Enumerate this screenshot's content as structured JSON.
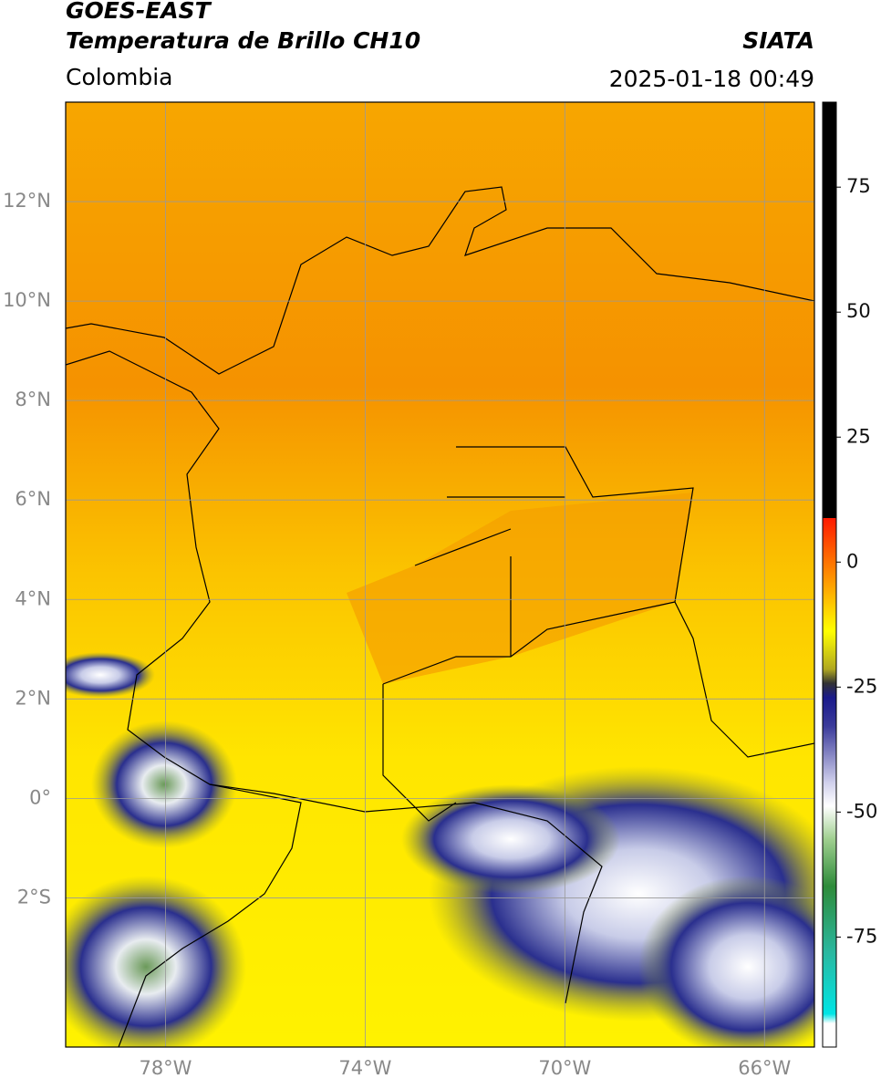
{
  "header": {
    "title": "GOES-EAST",
    "subtitle": "Temperatura de Brillo CH10",
    "source": "SIATA",
    "region": "Colombia",
    "datetime": "2025-01-18 00:49"
  },
  "map": {
    "xlim": [
      -80,
      -65
    ],
    "ylim": [
      -5,
      14
    ],
    "xticks": [
      {
        "value": -78,
        "label": "78°W"
      },
      {
        "value": -74,
        "label": "74°W"
      },
      {
        "value": -70,
        "label": "70°W"
      },
      {
        "value": -66,
        "label": "66°W"
      }
    ],
    "yticks": [
      {
        "value": 12,
        "label": "12°N"
      },
      {
        "value": 10,
        "label": "10°N"
      },
      {
        "value": 8,
        "label": "8°N"
      },
      {
        "value": 6,
        "label": "6°N"
      },
      {
        "value": 4,
        "label": "4°N"
      },
      {
        "value": 2,
        "label": "2°N"
      },
      {
        "value": 0,
        "label": "0°"
      },
      {
        "value": -2,
        "label": "2°S"
      }
    ],
    "grid": true
  },
  "colorbar": {
    "lim": [
      -97,
      92
    ],
    "ticks": [
      75,
      50,
      25,
      0,
      -25,
      -50,
      -75
    ]
  }
}
